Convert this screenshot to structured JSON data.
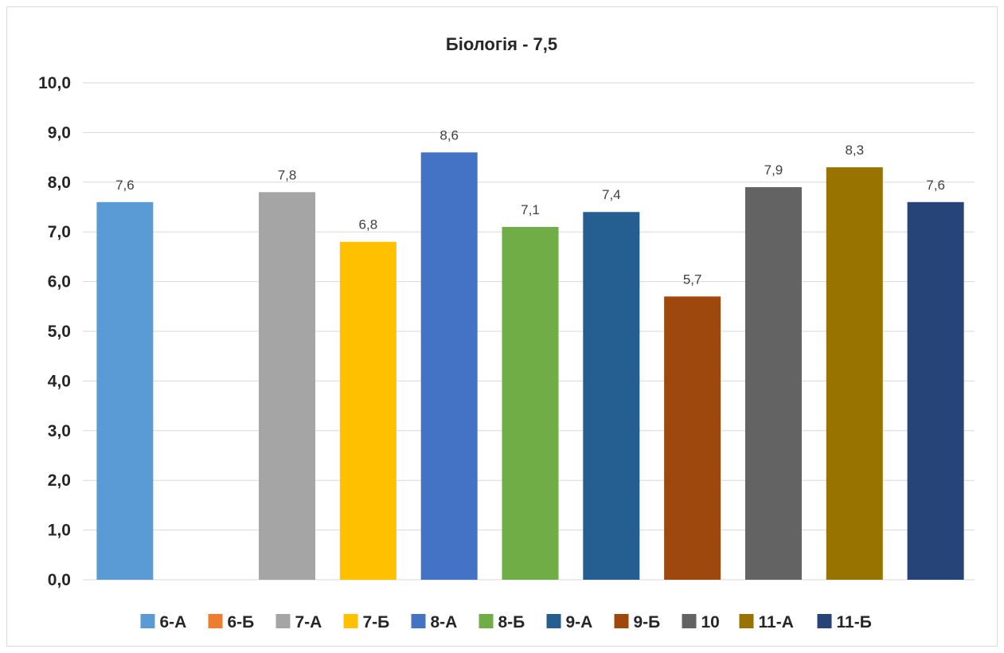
{
  "chart_data": {
    "type": "bar",
    "title": "Біологія - 7,5",
    "xlabel": "",
    "ylabel": "",
    "ylim": [
      0,
      10
    ],
    "yticks": [
      "0,0",
      "1,0",
      "2,0",
      "3,0",
      "4,0",
      "5,0",
      "6,0",
      "7,0",
      "8,0",
      "9,0",
      "10,0"
    ],
    "grid": true,
    "legend_position": "bottom",
    "series": [
      {
        "name": "6-А",
        "value": 7.6,
        "label": "7,6",
        "color": "#5b9bd5"
      },
      {
        "name": "6-Б",
        "value": null,
        "label": "",
        "color": "#ed7d31"
      },
      {
        "name": "7-А",
        "value": 7.8,
        "label": "7,8",
        "color": "#a5a5a5"
      },
      {
        "name": "7-Б",
        "value": 6.8,
        "label": "6,8",
        "color": "#ffc000"
      },
      {
        "name": "8-А",
        "value": 8.6,
        "label": "8,6",
        "color": "#4472c4"
      },
      {
        "name": "8-Б",
        "value": 7.1,
        "label": "7,1",
        "color": "#70ad47"
      },
      {
        "name": "9-А",
        "value": 7.4,
        "label": "7,4",
        "color": "#255e91"
      },
      {
        "name": "9-Б",
        "value": 5.7,
        "label": "5,7",
        "color": "#9e480e"
      },
      {
        "name": "10",
        "value": 7.9,
        "label": "7,9",
        "color": "#636363"
      },
      {
        "name": "11-А",
        "value": 8.3,
        "label": "8,3",
        "color": "#997300"
      },
      {
        "name": "11-Б",
        "value": 7.6,
        "label": "7,6",
        "color": "#264478"
      }
    ]
  }
}
